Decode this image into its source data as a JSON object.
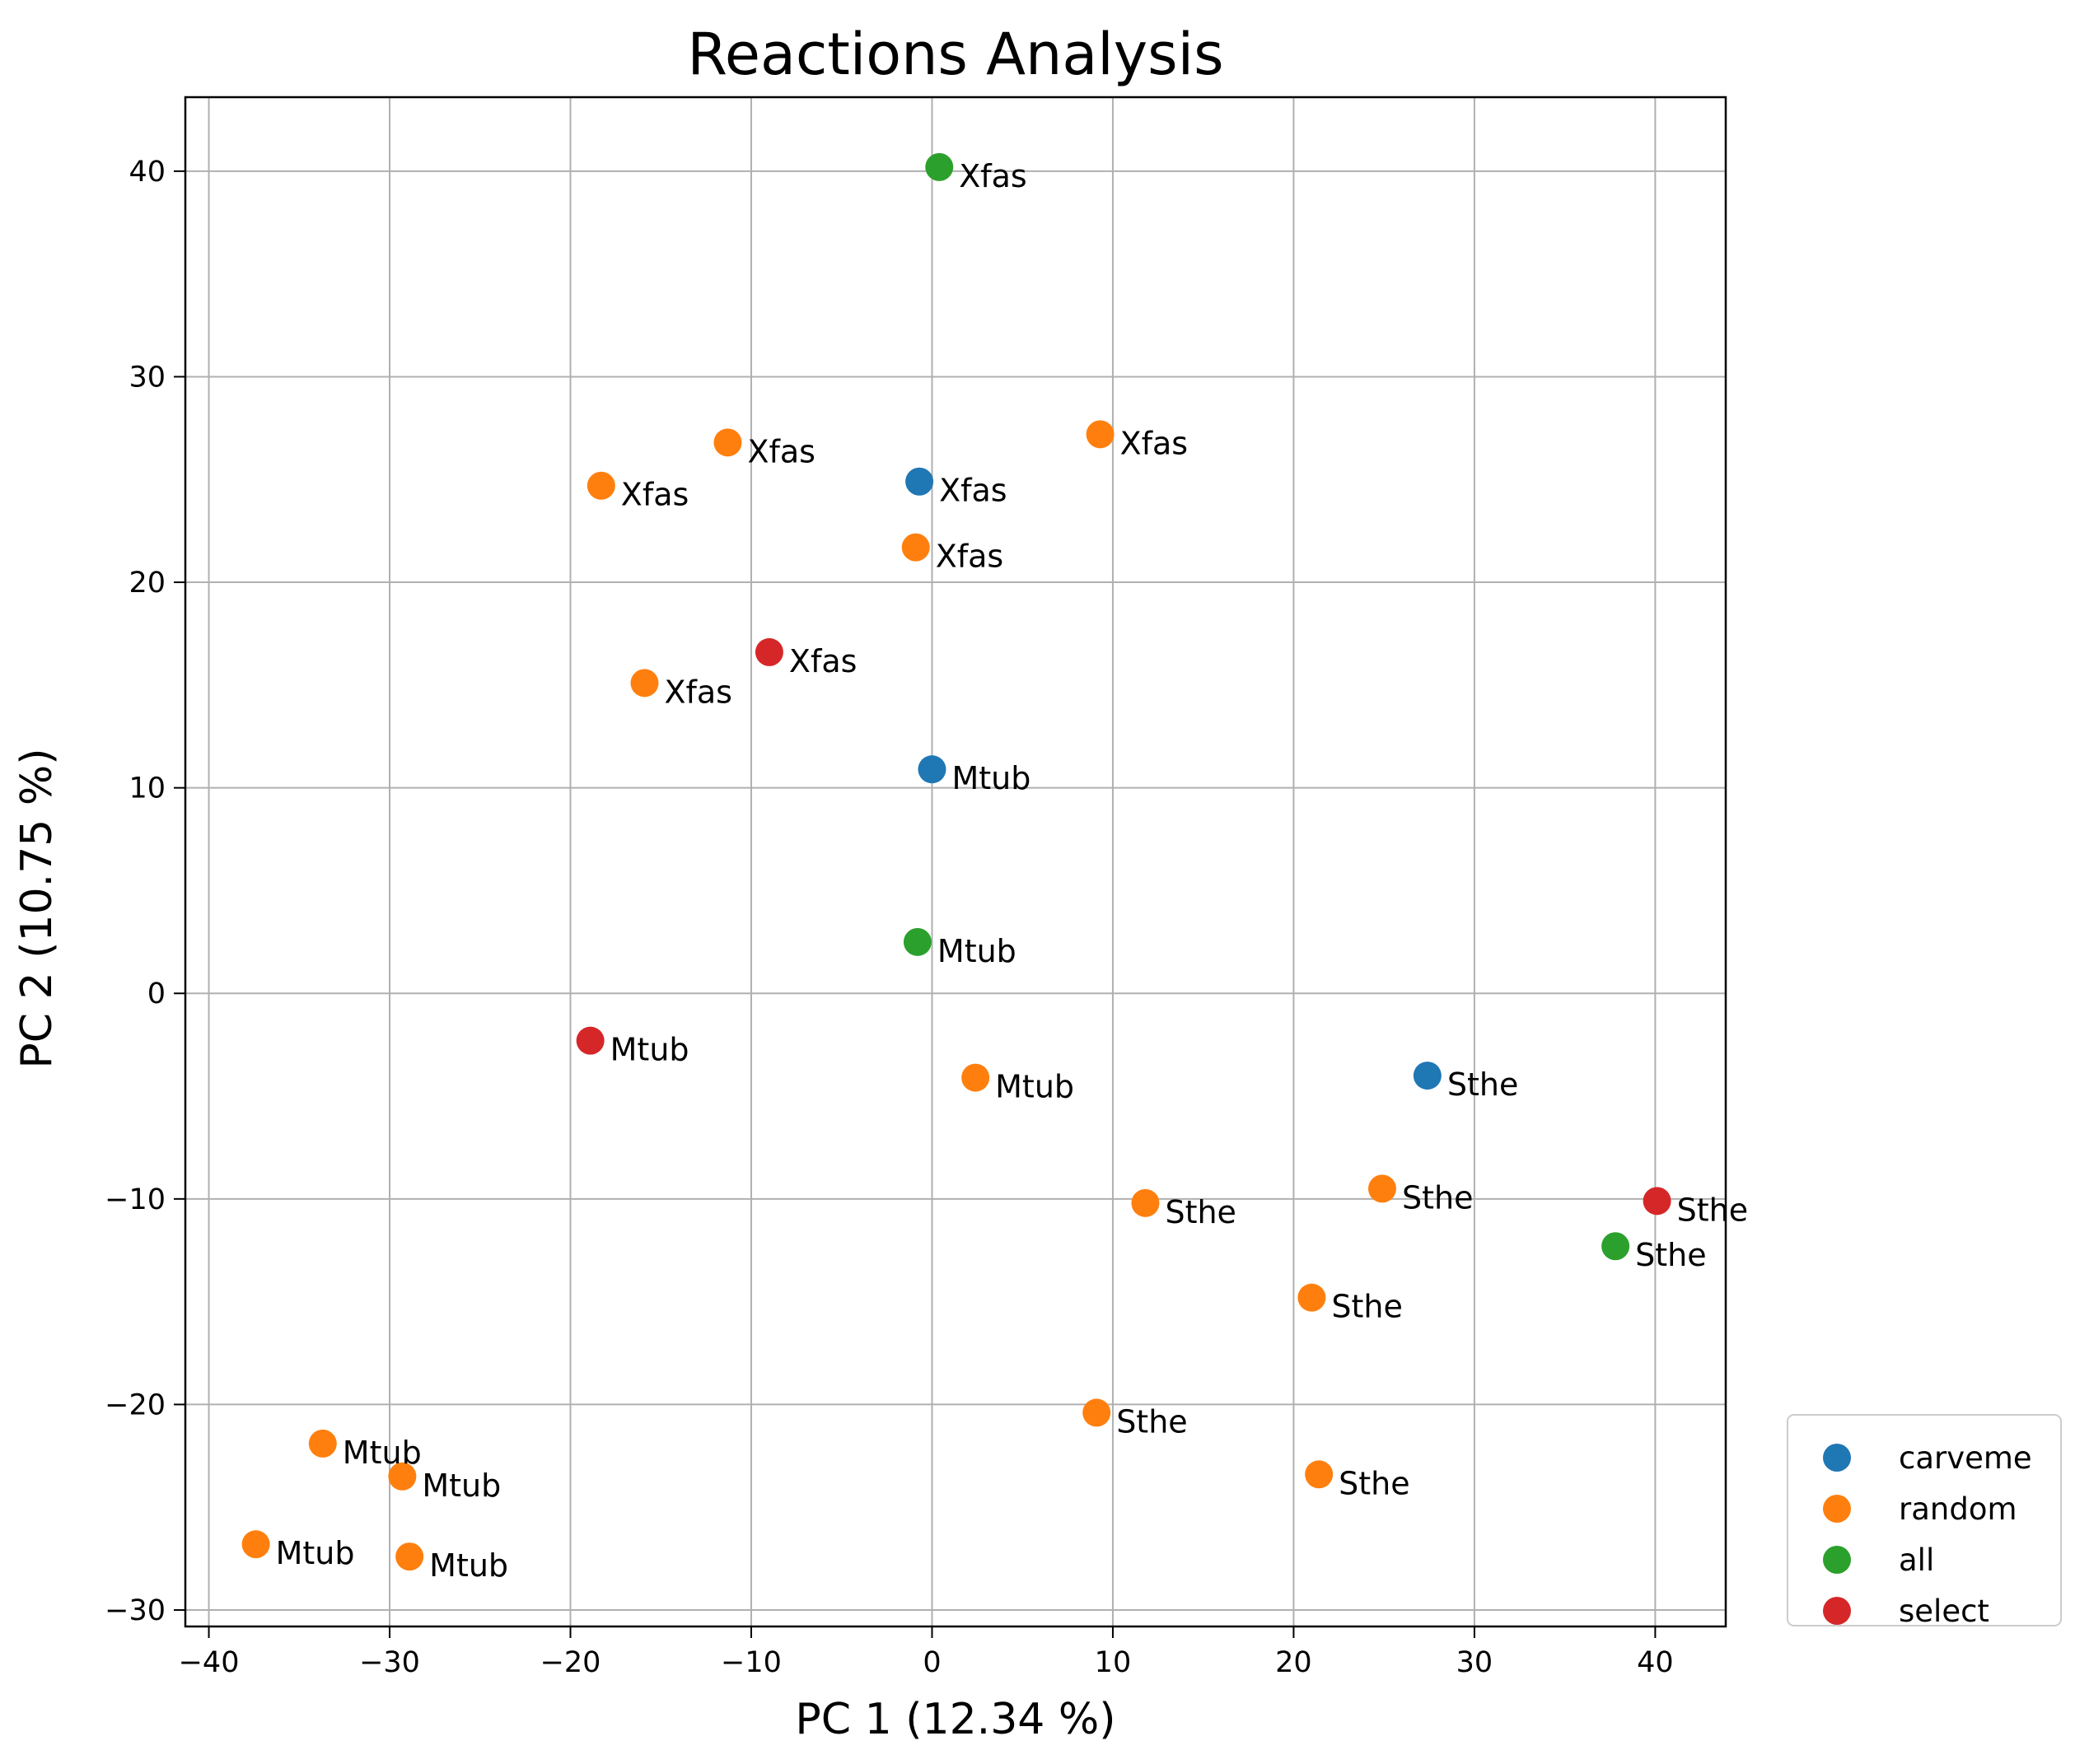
{
  "chart_data": {
    "type": "scatter",
    "title": "Reactions Analysis",
    "xlabel": "PC 1 (12.34 %)",
    "ylabel": "PC 2 (10.75 %)",
    "xlim": [
      -41.3,
      43.9
    ],
    "ylim": [
      -30.8,
      43.6
    ],
    "xticks": [
      -40,
      -30,
      -20,
      -10,
      0,
      10,
      20,
      30,
      40
    ],
    "yticks": [
      -30,
      -20,
      -10,
      0,
      10,
      20,
      30,
      40
    ],
    "xtick_labels": [
      "−40",
      "−30",
      "−20",
      "−10",
      "0",
      "10",
      "20",
      "30",
      "40"
    ],
    "ytick_labels": [
      "−30",
      "−20",
      "−10",
      "0",
      "10",
      "20",
      "30",
      "40"
    ],
    "grid": true,
    "legend_placement": "lower-right-outside",
    "series": [
      {
        "name": "carveme",
        "color": "#1f77b4",
        "points": [
          {
            "x": -0.7,
            "y": 24.9,
            "label": "Xfas"
          },
          {
            "x": 0.0,
            "y": 10.9,
            "label": "Mtub"
          },
          {
            "x": 27.4,
            "y": -4.0,
            "label": "Sthe"
          }
        ]
      },
      {
        "name": "random",
        "color": "#ff7f0e",
        "points": [
          {
            "x": 9.3,
            "y": 27.2,
            "label": "Xfas"
          },
          {
            "x": -11.3,
            "y": 26.8,
            "label": "Xfas"
          },
          {
            "x": -18.3,
            "y": 24.7,
            "label": "Xfas"
          },
          {
            "x": -0.9,
            "y": 21.7,
            "label": "Xfas"
          },
          {
            "x": -15.9,
            "y": 15.1,
            "label": "Xfas"
          },
          {
            "x": 2.4,
            "y": -4.1,
            "label": "Mtub"
          },
          {
            "x": 11.8,
            "y": -10.2,
            "label": "Sthe"
          },
          {
            "x": 24.9,
            "y": -9.5,
            "label": "Sthe"
          },
          {
            "x": 21.0,
            "y": -14.8,
            "label": "Sthe"
          },
          {
            "x": 9.1,
            "y": -20.4,
            "label": "Sthe"
          },
          {
            "x": 21.4,
            "y": -23.4,
            "label": "Sthe"
          },
          {
            "x": -33.7,
            "y": -21.9,
            "label": "Mtub"
          },
          {
            "x": -29.3,
            "y": -23.5,
            "label": "Mtub"
          },
          {
            "x": -37.4,
            "y": -26.8,
            "label": "Mtub"
          },
          {
            "x": -28.9,
            "y": -27.4,
            "label": "Mtub"
          }
        ]
      },
      {
        "name": "all",
        "color": "#2ca02c",
        "points": [
          {
            "x": 0.4,
            "y": 40.2,
            "label": "Xfas"
          },
          {
            "x": -0.8,
            "y": 2.5,
            "label": "Mtub"
          },
          {
            "x": 37.8,
            "y": -12.3,
            "label": "Sthe"
          }
        ]
      },
      {
        "name": "select",
        "color": "#d62728",
        "points": [
          {
            "x": -9.0,
            "y": 16.6,
            "label": "Xfas"
          },
          {
            "x": -18.9,
            "y": -2.3,
            "label": "Mtub"
          },
          {
            "x": 40.1,
            "y": -10.1,
            "label": "Sthe"
          }
        ]
      }
    ]
  }
}
